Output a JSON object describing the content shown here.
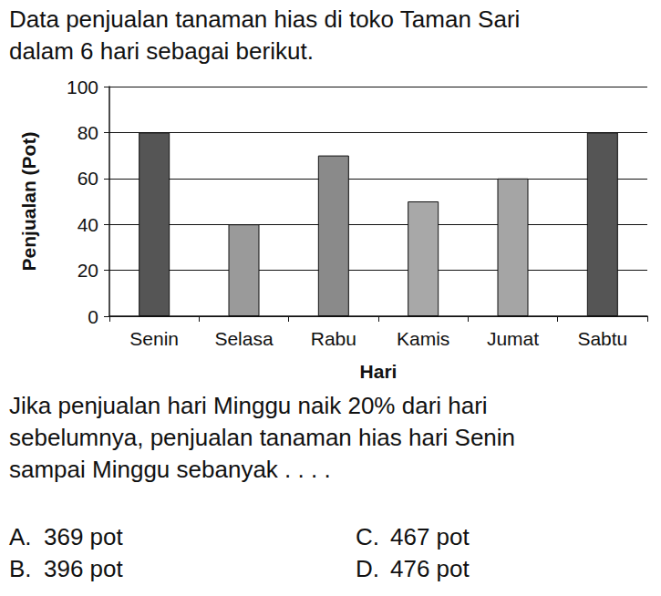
{
  "intro": [
    "Data penjualan tanaman hias di toko Taman Sari",
    "dalam 6 hari sebagai berikut."
  ],
  "chart_data": {
    "type": "bar",
    "categories": [
      "Senin",
      "Selasa",
      "Rabu",
      "Kamis",
      "Jumat",
      "Sabtu"
    ],
    "values": [
      80,
      40,
      70,
      50,
      60,
      80
    ],
    "colors": [
      "#555555",
      "#9a9a9a",
      "#8a8a8a",
      "#a8a8a8",
      "#a5a5a5",
      "#555555"
    ],
    "x_label": "Hari",
    "y_label": "Penjualan (Pot)",
    "ylim": [
      0,
      100
    ],
    "yticks": [
      0,
      20,
      40,
      60,
      80,
      100
    ],
    "grid": true
  },
  "question": [
    "Jika penjualan hari Minggu naik 20% dari hari",
    "sebelumnya, penjualan tanaman hias hari Senin",
    "sampai Minggu sebanyak . . . ."
  ],
  "options": [
    {
      "letter": "A.",
      "text": "369 pot"
    },
    {
      "letter": "B.",
      "text": "396 pot"
    },
    {
      "letter": "C.",
      "text": "467 pot"
    },
    {
      "letter": "D.",
      "text": "476 pot"
    }
  ]
}
